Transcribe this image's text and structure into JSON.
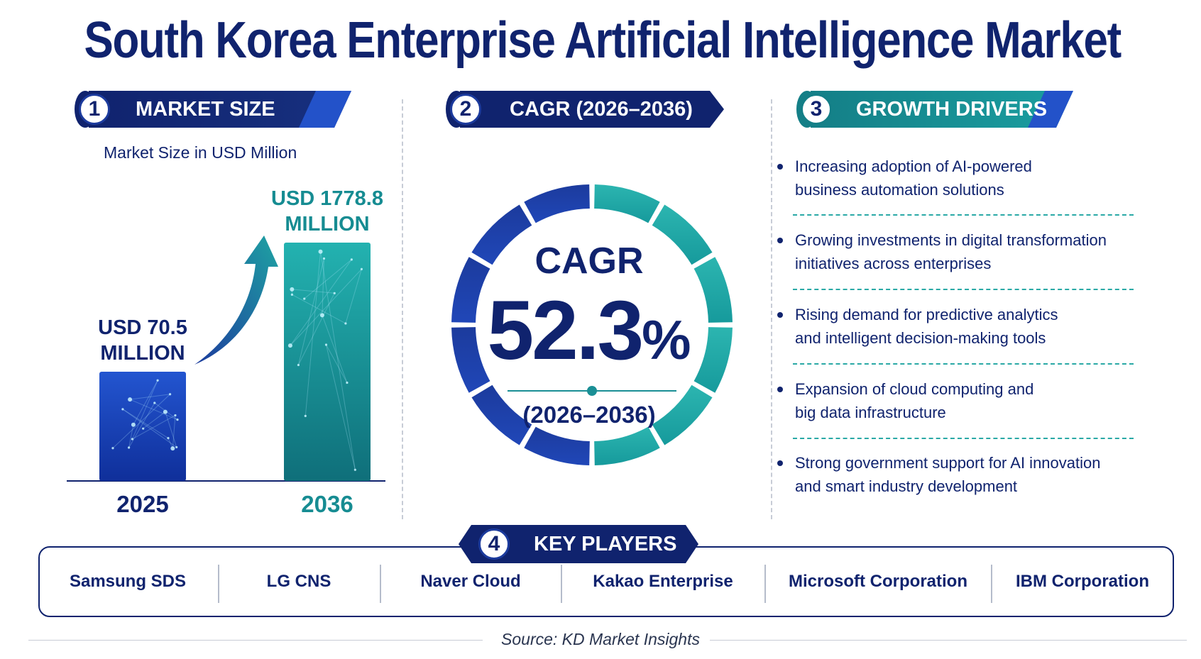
{
  "title": "South Korea Enterprise Artificial Intelligence Market",
  "colors": {
    "navy": "#10236e",
    "blue": "#1c3b9d",
    "teal": "#1a9a9c",
    "tealLight": "#2cb5b0"
  },
  "sections": {
    "market_size": {
      "number": "1",
      "label": "MARKET SIZE",
      "subtitle": "Market Size in USD Million"
    },
    "cagr": {
      "number": "2",
      "label": "CAGR (2026–2036)"
    },
    "drivers": {
      "number": "3",
      "label": "GROWTH DRIVERS"
    },
    "players": {
      "number": "4",
      "label": "KEY PLAYERS"
    }
  },
  "chart_data": {
    "type": "bar",
    "categories": [
      "2025",
      "2036"
    ],
    "values": [
      70.5,
      1778.8
    ],
    "value_labels": [
      [
        "USD 70.5",
        "MILLION"
      ],
      [
        "USD 1778.8",
        "MILLION"
      ]
    ],
    "title": "Market Size in USD Million",
    "xlabel": "",
    "ylabel": "",
    "bar_colors": [
      "#1c3b9d",
      "#1a9a9c"
    ]
  },
  "cagr": {
    "word": "CAGR",
    "value": "52.3",
    "unit": "%",
    "period": "(2026–2036)"
  },
  "drivers": [
    [
      "Increasing adoption of AI-powered",
      "business automation solutions"
    ],
    [
      "Growing investments in digital transformation",
      "initiatives across enterprises"
    ],
    [
      "Rising demand for predictive analytics",
      "and intelligent decision-making tools"
    ],
    [
      "Expansion of cloud computing and",
      "big data infrastructure"
    ],
    [
      "Strong government support for AI innovation",
      "and smart industry development"
    ]
  ],
  "players": [
    "Samsung SDS",
    "LG CNS",
    "Naver Cloud",
    "Kakao Enterprise",
    "Microsoft Corporation",
    "IBM Corporation"
  ],
  "source": "Source: KD Market Insights"
}
